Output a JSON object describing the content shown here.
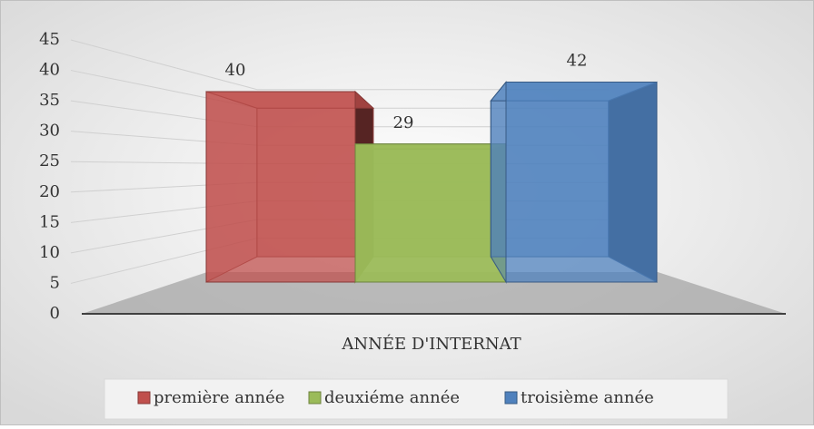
{
  "chart_data": {
    "type": "bar3d",
    "categories": [
      "ANNÉE D'INTERNAT"
    ],
    "series": [
      {
        "name": "première année",
        "color": "#c0504d",
        "values": [
          40
        ]
      },
      {
        "name": "deuxiéme année",
        "color": "#9bbb59",
        "values": [
          29
        ]
      },
      {
        "name": "troisième année",
        "color": "#4f81bd",
        "values": [
          42
        ]
      }
    ],
    "ylim": [
      0,
      45
    ],
    "yticks": [
      0,
      5,
      10,
      15,
      20,
      25,
      30,
      35,
      40,
      45
    ],
    "grid": true,
    "legend": "bottom"
  }
}
